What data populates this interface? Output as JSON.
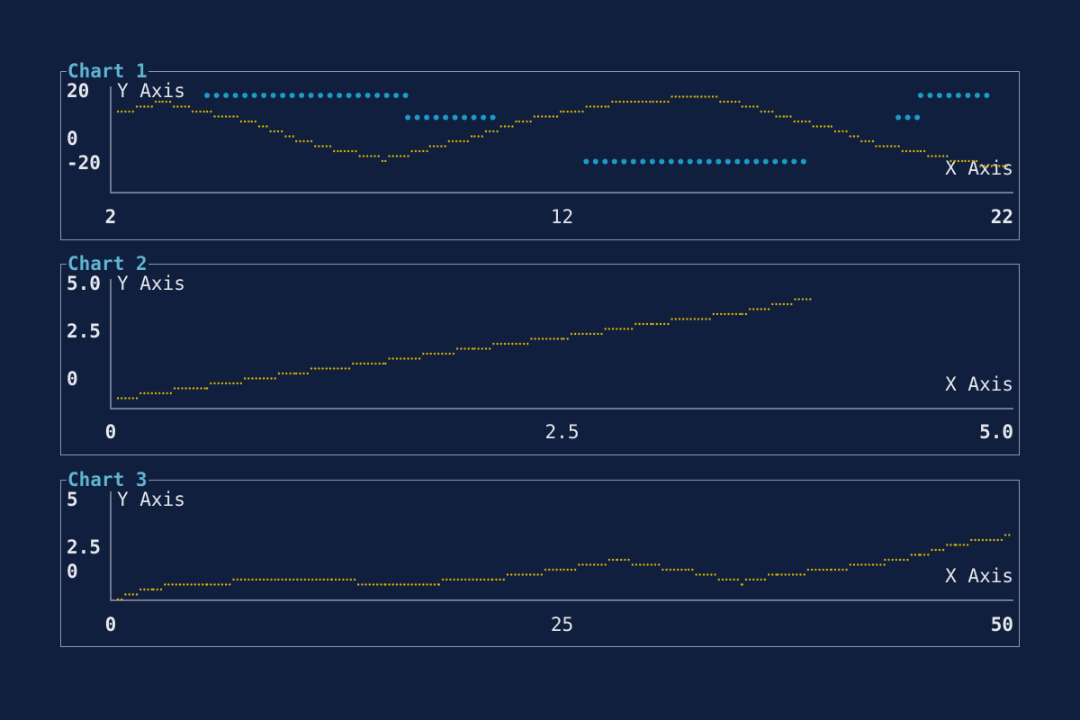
{
  "theme": {
    "background": "#111f3e",
    "border": "#8e97ab",
    "title_color": "#5fb4d0",
    "text_color": "#e4e6eb",
    "series_colors": [
      "#d4b106",
      "#1a9cc8"
    ]
  },
  "chart_data": [
    {
      "type": "scatter",
      "title": "Chart 1",
      "xlabel": "X Axis",
      "ylabel": "Y Axis",
      "xlim": [
        2,
        22
      ],
      "ylim": [
        -20,
        20
      ],
      "xticks": [
        "2",
        "12",
        "22"
      ],
      "yticks": [
        "20",
        "0",
        "-20"
      ],
      "series": [
        {
          "style": "braille-line",
          "x": [
            2,
            3,
            4,
            5,
            6,
            7,
            8,
            9,
            10,
            11,
            12,
            13,
            14,
            15,
            16,
            17,
            18,
            19,
            20,
            21,
            22
          ],
          "y": [
            12,
            17,
            12,
            8,
            0,
            -5,
            -9,
            -4,
            1,
            8,
            12,
            16,
            17,
            20,
            16,
            10,
            5,
            -2,
            -6,
            -10,
            -13
          ]
        },
        {
          "style": "large-dots",
          "x": [
            4,
            8.5,
            12.5,
            19.5,
            20
          ],
          "y": [
            20,
            10,
            -10,
            10,
            20
          ],
          "x_end": [
            8.5,
            10.5,
            17.5,
            20,
            21.6
          ]
        }
      ]
    },
    {
      "type": "line",
      "title": "Chart 2",
      "xlabel": "X Axis",
      "ylabel": "Y Axis",
      "xlim": [
        0,
        5
      ],
      "ylim": [
        0,
        5
      ],
      "xticks": [
        "0",
        "2.5",
        "5.0"
      ],
      "yticks": [
        "5.0",
        "2.5",
        "0"
      ],
      "series": [
        {
          "style": "braille-line",
          "x": [
            0,
            0.5,
            1.0,
            1.5,
            2.0,
            2.5,
            3.0,
            3.5,
            3.9
          ],
          "y": [
            0.05,
            0.6,
            1.2,
            1.7,
            2.3,
            2.8,
            3.4,
            3.9,
            4.6
          ]
        }
      ]
    },
    {
      "type": "line",
      "title": "Chart 3",
      "xlabel": "X Axis",
      "ylabel": "Y Axis",
      "xlim": [
        0,
        50
      ],
      "ylim": [
        0,
        5
      ],
      "xticks": [
        "0",
        "25",
        "50"
      ],
      "yticks": [
        "5",
        "2.5",
        "0"
      ],
      "series": [
        {
          "style": "braille-line",
          "x": [
            0,
            2,
            5,
            9,
            12,
            15,
            18,
            21,
            25,
            28,
            32,
            35,
            37,
            40,
            43,
            45,
            47,
            50
          ],
          "y": [
            -0.4,
            0.2,
            0.4,
            0.7,
            0.6,
            0.4,
            0.5,
            0.7,
            1.2,
            1.7,
            1.1,
            0.5,
            0.9,
            1.2,
            1.6,
            2.0,
            2.6,
            3.0
          ]
        }
      ]
    }
  ]
}
